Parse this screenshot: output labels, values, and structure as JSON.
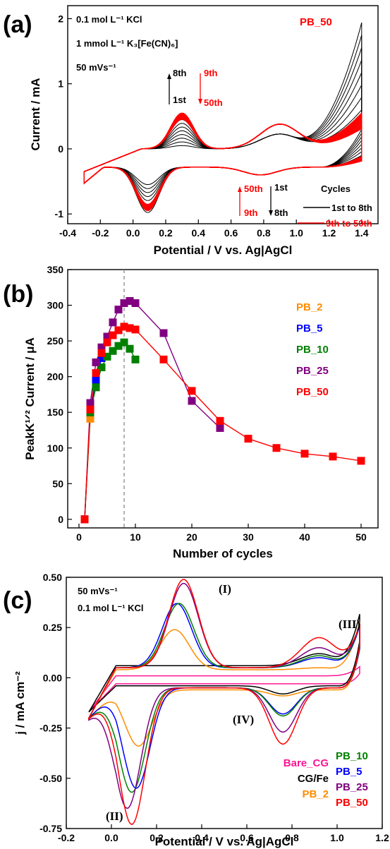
{
  "chart_data": [
    {
      "panel": "(a)",
      "type": "line",
      "xlabel": "Potential / V vs. Ag|AgCl",
      "ylabel": "Current / mA",
      "xlim": [
        -0.4,
        1.5
      ],
      "ylim": [
        -1.15,
        2.2
      ],
      "x_ticks": [
        -0.4,
        -0.2,
        0.0,
        0.2,
        0.4,
        0.6,
        0.8,
        1.0,
        1.2,
        1.4
      ],
      "x_tick_labels": [
        "-0.4",
        "-0.2",
        "0.0",
        "0.2",
        "0.4",
        "0.6",
        "0.8",
        "1.0",
        "1.2",
        "1.4"
      ],
      "y_ticks": [
        -1,
        0,
        1,
        2
      ],
      "y_tick_labels": [
        "-1",
        "0",
        "1",
        "2"
      ],
      "conditions": [
        "0.1 mol L⁻¹ KCl",
        "1 mmol L⁻¹ K₃[Fe(CN)₆]",
        "50 mVs⁻¹"
      ],
      "title_right": "PB_50",
      "annotations": {
        "up_top": "8th",
        "up_bottom": "1st",
        "down_top": "9th",
        "down_bottom": "50th",
        "lower_red_top": "50th",
        "lower_red_bottom": "9th",
        "lower_black_top": "1st",
        "lower_black_bottom": "8th"
      },
      "legend_title": "Cycles",
      "legend": [
        "1st to 8th",
        "9th to 50th"
      ],
      "series": [
        {
          "name": "1st to 8th",
          "color": "#000000",
          "anodic_peak": [
            0.3,
            0.55
          ],
          "cathodic_peak": [
            0.08,
            -0.98
          ],
          "upper_end_current": [
            0.6,
            1.94
          ]
        },
        {
          "name": "9th to 50th",
          "color": "#ff0000",
          "anodic_peak": [
            0.3,
            0.65
          ],
          "cathodic_peak": [
            0.09,
            -0.95
          ],
          "upper_end_current": [
            0.3,
            0.55
          ]
        }
      ]
    },
    {
      "panel": "(b)",
      "type": "scatter",
      "xlabel": "Number of cycles",
      "ylabel": "PeakK¹ᐟ² Current / μA",
      "xlim": [
        -2,
        53
      ],
      "ylim": [
        -12,
        350
      ],
      "x_ticks": [
        0,
        10,
        20,
        30,
        40,
        50
      ],
      "x_tick_labels": [
        "0",
        "10",
        "20",
        "30",
        "40",
        "50"
      ],
      "y_ticks": [
        0,
        50,
        100,
        150,
        200,
        250,
        300,
        350
      ],
      "y_tick_labels": [
        "0",
        "50",
        "100",
        "150",
        "200",
        "250",
        "300",
        "350"
      ],
      "vline_x": 8,
      "series": [
        {
          "name": "PB_2",
          "color": "#ff8c00",
          "x": [
            1,
            2
          ],
          "values": [
            0,
            141
          ]
        },
        {
          "name": "PB_5",
          "color": "#0000ff",
          "x": [
            1,
            2,
            3,
            4,
            5
          ],
          "values": [
            0,
            150,
            195,
            226,
            255
          ]
        },
        {
          "name": "PB_10",
          "color": "#008000",
          "x": [
            1,
            2,
            3,
            4,
            5,
            6,
            7,
            8,
            9,
            10
          ],
          "values": [
            0,
            150,
            185,
            213,
            228,
            236,
            243,
            248,
            239,
            224
          ]
        },
        {
          "name": "PB_25",
          "color": "#800080",
          "x": [
            1,
            2,
            3,
            4,
            5,
            6,
            7,
            8,
            9,
            10,
            15,
            20,
            25
          ],
          "values": [
            0,
            163,
            220,
            241,
            256,
            276,
            294,
            303,
            306,
            303,
            261,
            166,
            128
          ]
        },
        {
          "name": "PB_50",
          "color": "#ff0000",
          "x": [
            1,
            2,
            3,
            4,
            5,
            6,
            7,
            8,
            9,
            10,
            15,
            20,
            25,
            30,
            35,
            40,
            45,
            50
          ],
          "values": [
            0,
            154,
            205,
            233,
            248,
            258,
            265,
            270,
            268,
            266,
            224,
            180,
            138,
            113,
            100,
            92,
            88,
            82
          ]
        }
      ]
    },
    {
      "panel": "(c)",
      "type": "line",
      "xlabel": "Potential / V vs. Ag|AgCl",
      "ylabel": "j / mA cm⁻²",
      "xlim": [
        -0.2,
        1.2
      ],
      "ylim": [
        -0.75,
        0.5
      ],
      "x_ticks": [
        -0.2,
        0.0,
        0.2,
        0.4,
        0.6,
        0.8,
        1.0,
        1.2
      ],
      "x_tick_labels": [
        "-0.2",
        "0.0",
        "0.2",
        "0.4",
        "0.6",
        "0.8",
        "1.0",
        "1.2"
      ],
      "y_ticks": [
        -0.75,
        -0.5,
        -0.25,
        0.0,
        0.25,
        0.5
      ],
      "y_tick_labels": [
        "-0.75",
        "-0.50",
        "-0.25",
        "0.00",
        "0.25",
        "0.50"
      ],
      "conditions": [
        "50 mVs⁻¹",
        "0.1 mol L⁻¹ KCl"
      ],
      "peak_labels": [
        "(I)",
        "(II)",
        "(III)",
        "(IV)"
      ],
      "series": [
        {
          "name": "Bare_CG",
          "color": "#ff1493",
          "a1": 0.0,
          "c1": 0.0,
          "a3": 0.0,
          "c4": 0.0,
          "fwd0": 0.01,
          "rev0": -0.03,
          "end": 0.055,
          "start": -0.17
        },
        {
          "name": "CG/Fe",
          "color": "#000000",
          "a1": 0.0,
          "c1": 0.0,
          "a3": 0.06,
          "c4": -0.04,
          "fwd0": 0.06,
          "rev0": -0.04,
          "end": 0.33,
          "start": -0.17
        },
        {
          "name": "PB_2",
          "color": "#ff8c00",
          "a1": 0.2,
          "c1": -0.28,
          "a3": 0.01,
          "c4": -0.03,
          "fwd0": 0.04,
          "rev0": -0.06,
          "end": 0.28,
          "start": -0.2,
          "pa": 0.28,
          "pc": 0.12
        },
        {
          "name": "PB_5",
          "color": "#0000ff",
          "a1": 0.32,
          "c1": -0.5,
          "a3": 0.05,
          "c4": -0.13,
          "fwd0": 0.05,
          "rev0": -0.05,
          "end": 0.27,
          "start": -0.2,
          "pa": 0.29,
          "pc": 0.11
        },
        {
          "name": "PB_10",
          "color": "#008000",
          "a1": 0.32,
          "c1": -0.52,
          "a3": 0.06,
          "c4": -0.14,
          "fwd0": 0.05,
          "rev0": -0.05,
          "end": 0.28,
          "start": -0.2,
          "pa": 0.3,
          "pc": 0.09
        },
        {
          "name": "PB_25",
          "color": "#800080",
          "a1": 0.42,
          "c1": -0.6,
          "a3": 0.1,
          "c4": -0.22,
          "fwd0": 0.05,
          "rev0": -0.05,
          "end": 0.29,
          "start": -0.2,
          "pa": 0.32,
          "pc": 0.07
        },
        {
          "name": "PB_50",
          "color": "#ff0000",
          "a1": 0.44,
          "c1": -0.68,
          "a3": 0.15,
          "c4": -0.28,
          "fwd0": 0.05,
          "rev0": -0.05,
          "end": 0.3,
          "start": -0.2,
          "pa": 0.32,
          "pc": 0.09
        }
      ]
    }
  ]
}
